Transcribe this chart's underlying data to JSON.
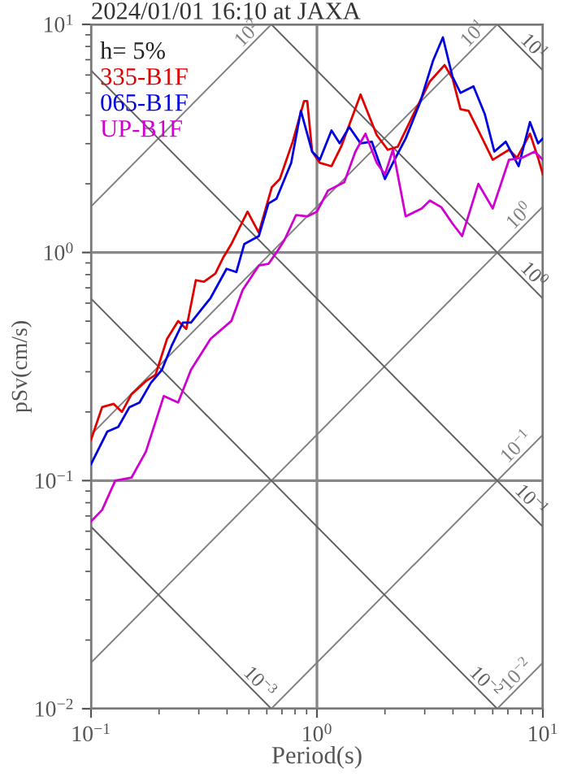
{
  "chart_data": {
    "type": "line",
    "title": "2024/01/01 16:10 at JAXA",
    "xlabel": "Period(s)",
    "ylabel": "pSv(cm/s)",
    "legend_title": "h= 5%",
    "legend": "top left",
    "log": "xy",
    "grid": true,
    "xlim": [
      0.1,
      10
    ],
    "ylim": [
      0.01,
      10
    ],
    "xticks": [
      {
        "value": 0.1,
        "label": "10$^{−1}$"
      },
      {
        "value": 1,
        "label": "10$^{0}$"
      },
      {
        "value": 10,
        "label": "10$^{1}$"
      }
    ],
    "yticks": [
      {
        "value": 0.01,
        "label": "10$^{−2}$"
      },
      {
        "value": 0.1,
        "label": "10$^{−1}$"
      },
      {
        "value": 1,
        "label": "10$^{0}$"
      },
      {
        "value": 10,
        "label": "10$^{1}$"
      }
    ],
    "series": [
      {
        "name": "335-B1F",
        "color": "#e00000",
        "x": [
          0.1,
          0.112,
          0.126,
          0.137,
          0.151,
          0.175,
          0.193,
          0.217,
          0.243,
          0.264,
          0.291,
          0.316,
          0.355,
          0.385,
          0.418,
          0.493,
          0.553,
          0.631,
          0.685,
          0.781,
          0.877,
          0.906,
          0.952,
          1.03,
          1.16,
          1.28,
          1.56,
          1.84,
          2.06,
          2.28,
          2.68,
          3.16,
          3.67,
          3.98,
          4.32,
          4.69,
          5.18,
          6.0,
          7.08,
          7.69,
          8.77,
          9.52,
          10
        ],
        "values": [
          0.151,
          0.21,
          0.217,
          0.2,
          0.239,
          0.273,
          0.291,
          0.418,
          0.501,
          0.462,
          0.756,
          0.744,
          0.808,
          0.952,
          1.09,
          1.51,
          1.22,
          1.93,
          2.1,
          3.06,
          4.61,
          4.61,
          2.77,
          2.47,
          2.39,
          2.91,
          4.93,
          3.27,
          2.82,
          2.91,
          4.05,
          5.62,
          6.63,
          5.81,
          4.25,
          4.18,
          3.43,
          2.55,
          2.82,
          2.6,
          3.32,
          2.6,
          2.2
        ]
      },
      {
        "name": "065-B1F",
        "color": "#0000e0",
        "x": [
          0.1,
          0.118,
          0.132,
          0.148,
          0.164,
          0.184,
          0.206,
          0.228,
          0.255,
          0.277,
          0.338,
          0.398,
          0.44,
          0.477,
          0.553,
          0.61,
          0.662,
          0.769,
          0.849,
          0.952,
          1.03,
          1.16,
          1.26,
          1.39,
          1.56,
          1.75,
          2.0,
          2.17,
          2.47,
          2.86,
          3.27,
          3.61,
          3.98,
          4.32,
          4.93,
          5.53,
          6.1,
          6.85,
          7.81,
          8.77,
          9.52,
          10
        ],
        "values": [
          0.118,
          0.164,
          0.172,
          0.21,
          0.22,
          0.268,
          0.306,
          0.392,
          0.493,
          0.493,
          0.631,
          0.848,
          0.821,
          1.09,
          1.18,
          1.64,
          1.72,
          2.47,
          4.18,
          2.77,
          2.55,
          3.43,
          3.01,
          3.55,
          3.01,
          3.06,
          2.1,
          2.47,
          3.16,
          4.54,
          6.96,
          8.77,
          5.9,
          5.01,
          5.35,
          4.05,
          2.77,
          3.06,
          2.39,
          3.73,
          3.01,
          3.16
        ]
      },
      {
        "name": "UP-B1F",
        "color": "#d000d0",
        "x": [
          0.1,
          0.112,
          0.128,
          0.151,
          0.175,
          0.21,
          0.243,
          0.277,
          0.338,
          0.418,
          0.469,
          0.553,
          0.61,
          0.662,
          0.72,
          0.808,
          0.906,
          1.0,
          1.12,
          1.32,
          1.48,
          1.64,
          1.84,
          2.0,
          2.17,
          2.47,
          2.91,
          3.16,
          3.55,
          3.98,
          4.39,
          5.18,
          6.0,
          7.08,
          8.07,
          9.2,
          10
        ],
        "values": [
          0.0663,
          0.0744,
          0.1,
          0.103,
          0.134,
          0.235,
          0.22,
          0.306,
          0.418,
          0.501,
          0.685,
          0.877,
          0.891,
          1.0,
          1.14,
          1.46,
          1.44,
          1.51,
          1.87,
          2.03,
          2.77,
          3.32,
          2.47,
          2.2,
          2.82,
          1.44,
          1.56,
          1.69,
          1.58,
          1.34,
          1.18,
          2.0,
          1.56,
          2.55,
          2.6,
          2.77,
          2.55
        ]
      },
      {
        "name": "10$^{−2}$",
        "color": "#808080",
        "line_style": "solid",
        "x": [
          6.28,
          10
        ],
        "values": [
          0.01,
          0.0159
        ]
      },
      {
        "name": "10$^{−1}$",
        "color": "#808080",
        "line_style": "solid",
        "x": [
          0.628,
          10
        ],
        "values": [
          0.01,
          0.159
        ]
      },
      {
        "name": "10$^{0}$",
        "color": "#808080",
        "line_style": "solid",
        "x": [
          0.1,
          10
        ],
        "values": [
          0.0159,
          1.59
        ]
      },
      {
        "name": "10$^{1}$",
        "color": "#808080",
        "line_style": "solid",
        "x": [
          0.1,
          6.28
        ],
        "values": [
          0.159,
          10
        ]
      },
      {
        "name": "10$^{2}$",
        "color": "#808080",
        "line_style": "solid",
        "x": [
          0.1,
          0.628
        ],
        "values": [
          1.59,
          10
        ]
      },
      {
        "name": "10$^{−3}$",
        "color": "#606060",
        "line_style": "solid",
        "x": [
          0.1,
          0.628
        ],
        "values": [
          0.0628,
          0.01
        ]
      },
      {
        "name": "10$^{−2}$",
        "color": "#606060",
        "line_style": "solid",
        "x": [
          0.1,
          6.28
        ],
        "values": [
          0.628,
          0.01
        ]
      },
      {
        "name": "10$^{−1}$",
        "color": "#606060",
        "line_style": "solid",
        "x": [
          0.1,
          10
        ],
        "values": [
          6.28,
          0.0628
        ]
      },
      {
        "name": "10$^{0}$",
        "color": "#606060",
        "line_style": "solid",
        "x": [
          0.628,
          10
        ],
        "values": [
          10,
          0.628
        ]
      },
      {
        "name": "10$^{1}$",
        "color": "#606060",
        "line_style": "solid",
        "x": [
          6.28,
          10
        ],
        "values": [
          10,
          6.28
        ]
      }
    ]
  }
}
